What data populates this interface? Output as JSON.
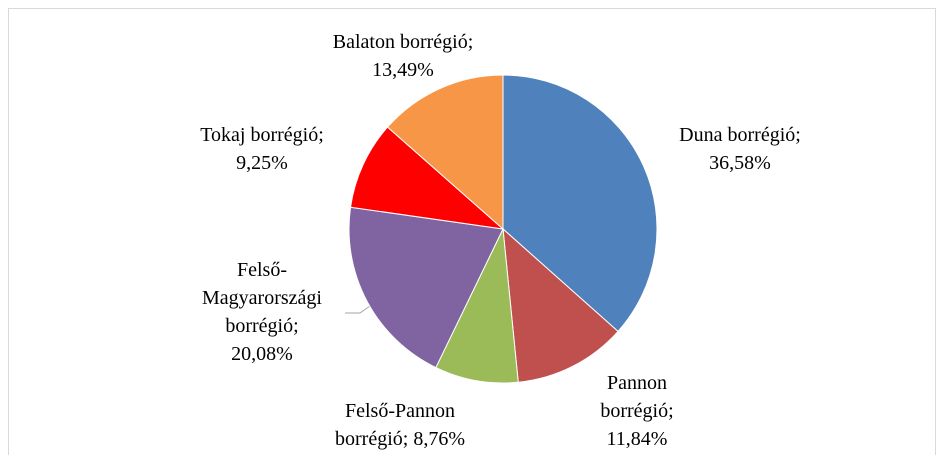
{
  "chart_data": {
    "type": "pie",
    "values": [
      36.58,
      11.84,
      8.76,
      20.08,
      9.25,
      13.49
    ],
    "value_labels": [
      "Duna borrégió;\n36,58%",
      "Pannon\nborrégió;\n11,84%",
      "Felső-Pannon\nborrégió; 8,76%",
      "Felső-\nMagyarországi\nborrégió;\n20,08%",
      "Tokaj borrégió;\n9,25%",
      "Balaton borrégió;\n13,49%"
    ],
    "colors": [
      "#4f81bd",
      "#c0504d",
      "#9bbb59",
      "#8064a2",
      "#ff0000",
      "#f79646"
    ]
  }
}
